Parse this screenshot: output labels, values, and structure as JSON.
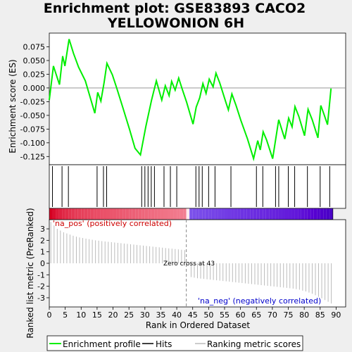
{
  "chart_data": {
    "type": "line",
    "title_line1": "Enrichment plot: GSE83893 CACO2",
    "title_line2": "YELLOWONION 6H",
    "es_ylabel": "Enrichment score (ES)",
    "metric_ylabel": "Ranked list metric (PreRanked)",
    "xlabel": "Rank in Ordered Dataset",
    "xlim": [
      0,
      93
    ],
    "es_ylim": [
      -0.14,
      0.1
    ],
    "metric_ylim": [
      -3.8,
      3.8
    ],
    "x_ticks": [
      "0",
      "5",
      "10",
      "15",
      "20",
      "25",
      "30",
      "35",
      "40",
      "45",
      "50",
      "55",
      "60",
      "65",
      "70",
      "75",
      "80",
      "85",
      "90"
    ],
    "es_y_ticks": [
      "0.075",
      "0.050",
      "0.025",
      "0.000",
      "-0.025",
      "-0.050",
      "-0.075",
      "-0.100",
      "-0.125"
    ],
    "metric_y_ticks": [
      "3",
      "2",
      "1",
      "0",
      "-1",
      "-2",
      "-3"
    ],
    "es_curve": {
      "x": [
        0,
        1.3,
        3.2,
        4.2,
        4.9,
        6.2,
        7.6,
        9.2,
        11.3,
        14.3,
        15.2,
        16.2,
        17.2,
        18.1,
        19.8,
        21.2,
        23.2,
        25.2,
        26.9,
        28.6,
        30.3,
        32.1,
        33.6,
        35.3,
        36.4,
        37.6,
        38.4,
        39.5,
        40.6,
        41.7,
        43.1,
        45.1,
        46.1,
        47.2,
        48.2,
        49.2,
        50.2,
        51.4,
        52.3,
        53.5,
        55.4,
        56.2,
        57.3,
        58.6,
        60.1,
        62.2,
        64.1,
        65.4,
        66.2,
        67.1,
        68.2,
        70.1,
        72.0,
        73.9,
        75.1,
        76.2,
        77.1,
        78.3,
        80.1,
        81.2,
        82.5,
        84.3,
        85.2,
        86.2,
        87.3,
        88.4
      ],
      "es": [
        -0.022,
        0.04,
        0.006,
        0.058,
        0.04,
        0.089,
        0.063,
        0.038,
        0.013,
        -0.046,
        -0.008,
        -0.024,
        0.01,
        0.045,
        0.024,
        -0.001,
        -0.038,
        -0.076,
        -0.11,
        -0.122,
        -0.07,
        -0.022,
        0.013,
        -0.022,
        0.004,
        -0.014,
        0.012,
        -0.004,
        0.018,
        -0.002,
        -0.026,
        -0.066,
        -0.035,
        -0.018,
        0.008,
        -0.01,
        0.016,
        0.002,
        0.027,
        0.009,
        -0.026,
        -0.04,
        -0.011,
        -0.032,
        -0.059,
        -0.093,
        -0.129,
        -0.096,
        -0.113,
        -0.08,
        -0.095,
        -0.129,
        -0.058,
        -0.093,
        -0.055,
        -0.071,
        -0.034,
        -0.052,
        -0.087,
        -0.039,
        -0.058,
        -0.091,
        -0.032,
        -0.048,
        -0.067,
        -0.001
      ]
    },
    "hits": [
      1,
      4,
      6,
      15,
      17,
      18,
      29,
      30,
      31,
      32,
      33,
      36,
      38,
      40,
      46,
      47,
      48,
      50,
      52,
      57,
      65,
      67,
      71,
      72,
      75,
      77,
      81,
      85,
      88
    ],
    "ranked_metric": {
      "x": [
        0,
        1,
        2,
        3,
        4,
        5,
        6,
        7,
        8,
        9,
        10,
        11,
        12,
        13,
        14,
        15,
        16,
        17,
        18,
        19,
        20,
        21,
        22,
        23,
        24,
        25,
        26,
        27,
        28,
        29,
        30,
        31,
        32,
        33,
        34,
        35,
        36,
        37,
        38,
        39,
        40,
        41,
        42,
        43,
        44,
        45,
        46,
        47,
        48,
        49,
        50,
        51,
        52,
        53,
        54,
        55,
        56,
        57,
        58,
        59,
        60,
        61,
        62,
        63,
        64,
        65,
        66,
        67,
        68,
        69,
        70,
        71,
        72,
        73,
        74,
        75,
        76,
        77,
        78,
        79,
        80,
        81,
        82,
        83,
        84,
        85,
        86,
        87,
        88
      ],
      "values": [
        3.6,
        3.3,
        3.0,
        2.85,
        2.7,
        2.6,
        2.5,
        2.4,
        2.32,
        2.25,
        2.2,
        2.15,
        2.1,
        2.05,
        2.0,
        1.97,
        1.93,
        1.9,
        1.87,
        1.84,
        1.81,
        1.78,
        1.75,
        1.72,
        1.69,
        1.66,
        1.63,
        1.6,
        1.57,
        1.54,
        1.51,
        1.48,
        1.45,
        1.42,
        1.39,
        1.36,
        1.33,
        1.3,
        1.27,
        1.24,
        1.21,
        1.18,
        1.15,
        0.05,
        -1.2,
        -1.25,
        -1.3,
        -1.33,
        -1.36,
        -1.39,
        -1.42,
        -1.45,
        -1.48,
        -1.51,
        -1.54,
        -1.57,
        -1.6,
        -1.63,
        -1.66,
        -1.69,
        -1.72,
        -1.75,
        -1.78,
        -1.81,
        -1.84,
        -1.87,
        -1.9,
        -1.93,
        -1.96,
        -1.99,
        -2.02,
        -2.05,
        -2.08,
        -2.11,
        -2.14,
        -2.17,
        -2.2,
        -2.25,
        -2.3,
        -2.38,
        -2.45,
        -2.55,
        -2.65,
        -2.78,
        -2.92,
        -3.05,
        -3.2,
        -3.35,
        -3.5
      ]
    },
    "zero_cross": 43,
    "label_pos": "'na_pos' (positively correlated)",
    "label_neg": "'na_neg' (negatively correlated)",
    "label_zero": "Zero cross at 43",
    "legend": [
      "Enrichment profile",
      "Hits",
      "Ranking metric scores"
    ],
    "colors": {
      "es_line": "#00ee00",
      "hits": "#000000",
      "metric": "#bbbbbb",
      "pos_label": "#cc0000",
      "neg_label": "#0000cc"
    }
  }
}
